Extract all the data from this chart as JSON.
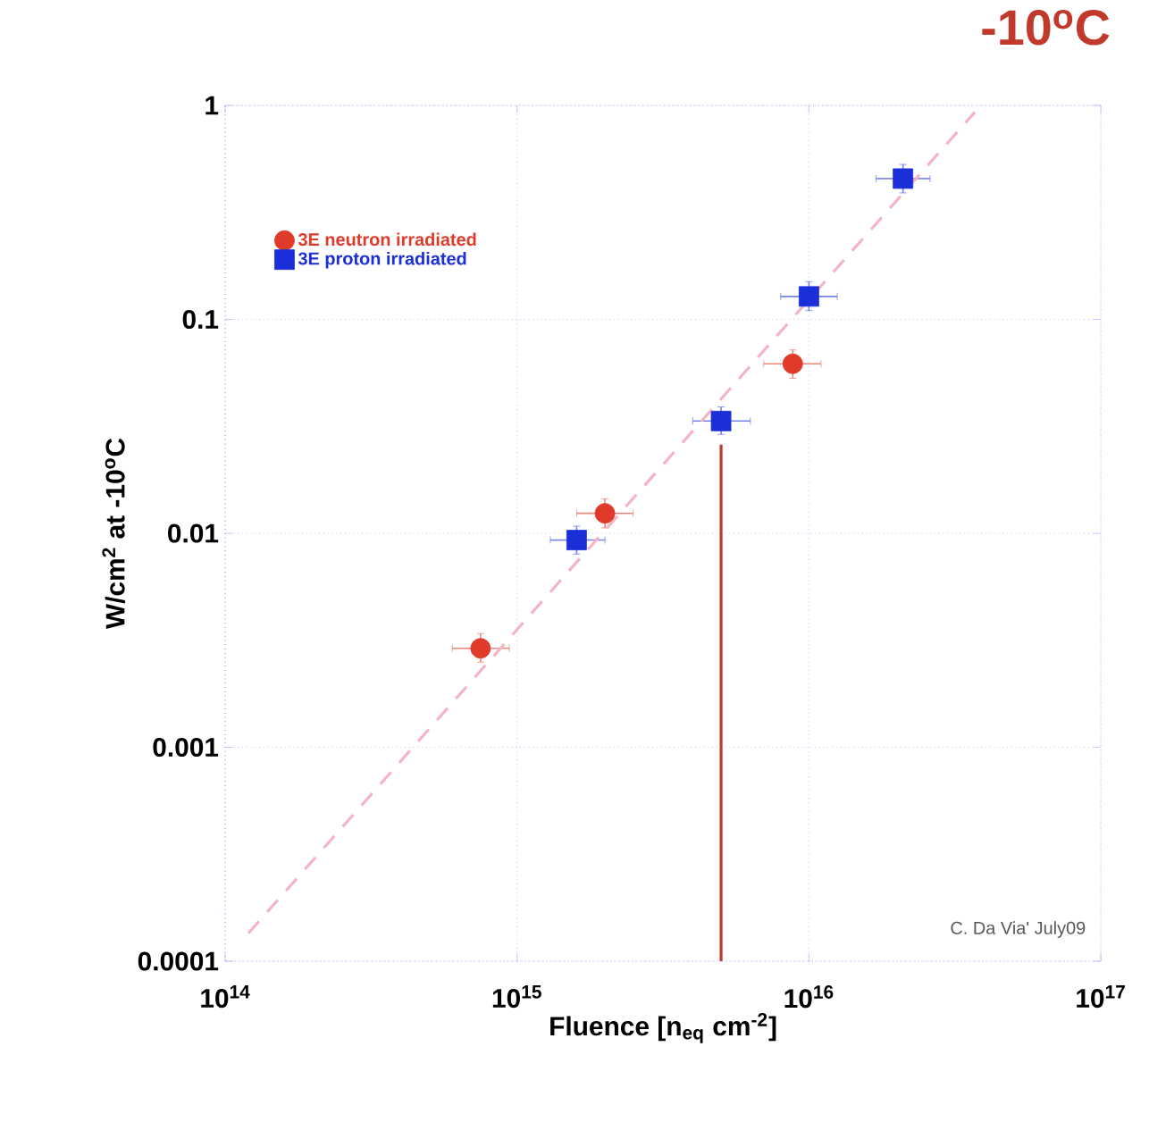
{
  "chart_data": {
    "type": "scatter",
    "title": "-10$^{o}$C",
    "xlabel": "Fluence [n$_{eq}$ cm$^{-2}$]",
    "ylabel": "W/cm$^{2}$ at -10$^{o}$C",
    "log": "xy",
    "grid": true,
    "legend": "top left",
    "xlim": [
      100000000000000.0,
      1e+17
    ],
    "ylim": [
      0.0001,
      1
    ],
    "xticks": [
      {
        "value": 100000000000000.0,
        "label": "10$^{14}$"
      },
      {
        "value": 1000000000000000.0,
        "label": "10$^{15}$"
      },
      {
        "value": 1e+16,
        "label": "10$^{16}$"
      },
      {
        "value": 1e+17,
        "label": "10$^{17}$"
      }
    ],
    "yticks": [
      0.0001,
      0.001,
      0.01,
      0.1,
      1
    ],
    "series": [
      {
        "name": "3E neutron irradiated",
        "color": "#e03a2a",
        "marker": "circle",
        "x": [
          750000000000000.0,
          2000000000000000.0,
          8800000000000000.0
        ],
        "values": [
          0.0029,
          0.0124,
          0.062
        ],
        "errors": [
          [
            0.0025,
            0.0034
          ],
          [
            0.0106,
            0.0145
          ],
          [
            0.053,
            0.072
          ]
        ],
        "xerrors": [
          [
            600000000000000.0,
            940000000000000.0
          ],
          [
            1600000000000000.0,
            2500000000000000.0
          ],
          [
            7000000000000000.0,
            1.1e+16
          ]
        ]
      },
      {
        "name": "3E proton irradiated",
        "color": "#1a2fd8",
        "marker": "square",
        "x": [
          1600000000000000.0,
          5000000000000000.0,
          1e+16,
          2.1e+16
        ],
        "values": [
          0.0093,
          0.0335,
          0.128,
          0.455
        ],
        "errors": [
          [
            0.008,
            0.0108
          ],
          [
            0.029,
            0.039
          ],
          [
            0.11,
            0.15
          ],
          [
            0.39,
            0.53
          ]
        ],
        "xerrors": [
          [
            1300000000000000.0,
            2000000000000000.0
          ],
          [
            4000000000000000.0,
            6300000000000000.0
          ],
          [
            8000000000000000.0,
            1.25e+16
          ],
          [
            1.7e+16,
            2.6e+16
          ]
        ]
      },
      {
        "type": "line",
        "color": "#f4b4c4",
        "line_style": "dashed",
        "x": [
          120000000000000.0,
          3.7e+16
        ],
        "values": [
          0.000135,
          0.93
        ]
      },
      {
        "type": "line",
        "color": "#c0392b",
        "line_style": "solid",
        "x": [
          5000000000000000.0,
          5000000000000000.0
        ],
        "values": [
          0.0001,
          0.026
        ]
      }
    ],
    "annotations": [
      "C. Da Via' July09"
    ]
  }
}
